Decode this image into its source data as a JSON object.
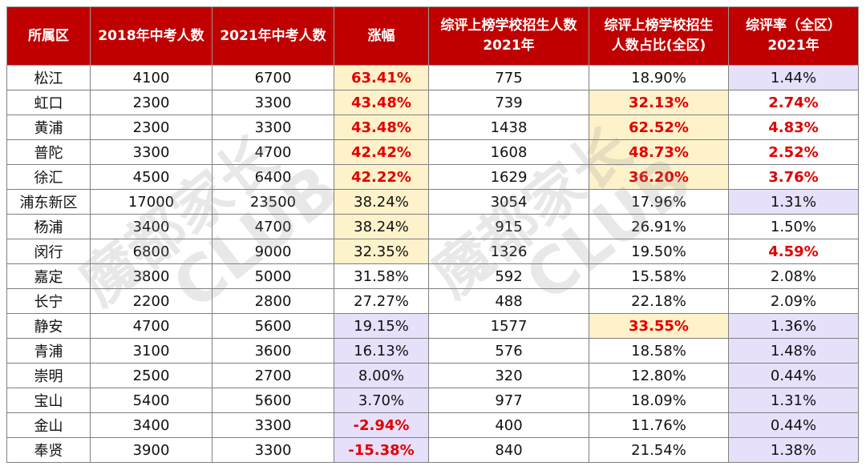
{
  "headers": [
    "所属区",
    "2018年中考人数",
    "2021年中考人数",
    "涨幅",
    "综评上榜学校招生人数2021年",
    "综评上榜学校招生人数占比(全区)",
    "综评率（全区）2021年"
  ],
  "header_lines": [
    [
      "所属区"
    ],
    [
      "2018年中考人数"
    ],
    [
      "2021年中考人数"
    ],
    [
      "涨幅"
    ],
    [
      "综评上榜学校招生人数",
      "2021年"
    ],
    [
      "综评上榜学校招生",
      "人数占比(全区)"
    ],
    [
      "综评率（全区）",
      "2021年"
    ]
  ],
  "rows": [
    [
      "松江",
      "4100",
      "6700",
      "63.41%",
      "775",
      "18.90%",
      "1.44%"
    ],
    [
      "虹口",
      "2300",
      "3300",
      "43.48%",
      "739",
      "32.13%",
      "2.74%"
    ],
    [
      "黄浦",
      "2300",
      "3300",
      "43.48%",
      "1438",
      "62.52%",
      "4.83%"
    ],
    [
      "普陀",
      "3300",
      "4700",
      "42.42%",
      "1608",
      "48.73%",
      "2.52%"
    ],
    [
      "徐汇",
      "4500",
      "6400",
      "42.22%",
      "1629",
      "36.20%",
      "3.76%"
    ],
    [
      "浦东新区",
      "17000",
      "23500",
      "38.24%",
      "3054",
      "17.96%",
      "1.31%"
    ],
    [
      "杨浦",
      "3400",
      "4700",
      "38.24%",
      "915",
      "26.91%",
      "1.50%"
    ],
    [
      "闵行",
      "6800",
      "9000",
      "32.35%",
      "1326",
      "19.50%",
      "4.59%"
    ],
    [
      "嘉定",
      "3800",
      "5000",
      "31.58%",
      "592",
      "15.58%",
      "2.08%"
    ],
    [
      "长宁",
      "2200",
      "2800",
      "27.27%",
      "488",
      "22.18%",
      "2.09%"
    ],
    [
      "静安",
      "4700",
      "5600",
      "19.15%",
      "1577",
      "33.55%",
      "1.36%"
    ],
    [
      "青浦",
      "3100",
      "3600",
      "16.13%",
      "576",
      "18.58%",
      "1.48%"
    ],
    [
      "崇明",
      "2500",
      "2700",
      "8.00%",
      "320",
      "12.80%",
      "0.44%"
    ],
    [
      "宝山",
      "5400",
      "5600",
      "3.70%",
      "977",
      "18.09%",
      "1.31%"
    ],
    [
      "金山",
      "3400",
      "3300",
      "-2.94%",
      "400",
      "11.76%",
      "0.44%"
    ],
    [
      "奉贤",
      "3900",
      "3300",
      "-15.38%",
      "840",
      "21.54%",
      "1.38%"
    ]
  ],
  "cell_fill": [
    [
      "",
      "",
      "",
      "yellow",
      "",
      "",
      "purple"
    ],
    [
      "",
      "",
      "",
      "yellow",
      "",
      "yellow",
      ""
    ],
    [
      "",
      "",
      "",
      "yellow",
      "",
      "yellow",
      ""
    ],
    [
      "",
      "",
      "",
      "yellow",
      "",
      "yellow",
      ""
    ],
    [
      "",
      "",
      "",
      "yellow",
      "",
      "yellow",
      ""
    ],
    [
      "",
      "",
      "",
      "yellow",
      "",
      "",
      "purple"
    ],
    [
      "",
      "",
      "",
      "yellow",
      "",
      "",
      ""
    ],
    [
      "",
      "",
      "",
      "yellow",
      "",
      "",
      ""
    ],
    [
      "",
      "",
      "",
      "",
      "",
      "",
      ""
    ],
    [
      "",
      "",
      "",
      "",
      "",
      "",
      ""
    ],
    [
      "",
      "",
      "",
      "purple",
      "",
      "yellow",
      "purple"
    ],
    [
      "",
      "",
      "",
      "purple",
      "",
      "",
      "purple"
    ],
    [
      "",
      "",
      "",
      "purple",
      "",
      "",
      "purple"
    ],
    [
      "",
      "",
      "",
      "purple",
      "",
      "",
      "purple"
    ],
    [
      "",
      "",
      "",
      "purple",
      "",
      "",
      "purple"
    ],
    [
      "",
      "",
      "",
      "purple",
      "",
      "",
      "purple"
    ]
  ],
  "cell_highlight": [
    [
      "",
      "",
      "",
      "red",
      "",
      "",
      ""
    ],
    [
      "",
      "",
      "",
      "red",
      "",
      "red",
      "red"
    ],
    [
      "",
      "",
      "",
      "red",
      "",
      "red",
      "red"
    ],
    [
      "",
      "",
      "",
      "red",
      "",
      "red",
      "red"
    ],
    [
      "",
      "",
      "",
      "red",
      "",
      "red",
      "red"
    ],
    [
      "",
      "",
      "",
      "",
      "",
      "",
      ""
    ],
    [
      "",
      "",
      "",
      "",
      "",
      "",
      ""
    ],
    [
      "",
      "",
      "",
      "",
      "",
      "",
      "red"
    ],
    [
      "",
      "",
      "",
      "",
      "",
      "",
      ""
    ],
    [
      "",
      "",
      "",
      "",
      "",
      "",
      ""
    ],
    [
      "",
      "",
      "",
      "",
      "",
      "red",
      ""
    ],
    [
      "",
      "",
      "",
      "",
      "",
      "",
      ""
    ],
    [
      "",
      "",
      "",
      "",
      "",
      "",
      ""
    ],
    [
      "",
      "",
      "",
      "",
      "",
      "",
      ""
    ],
    [
      "",
      "",
      "",
      "red",
      "",
      "",
      ""
    ],
    [
      "",
      "",
      "",
      "red",
      "",
      "",
      ""
    ]
  ],
  "colors": {
    "header_bg": "#c00000",
    "header_text": "#ffffff",
    "highlight_text": "#e00000",
    "fill_yellow": "#fef2cb",
    "fill_purple": "#e6e0fb"
  },
  "watermarks": [
    {
      "line1": "魔都家长",
      "line2": "CLUB"
    },
    {
      "line1": "魔都家长",
      "line2": "CLUB"
    }
  ]
}
